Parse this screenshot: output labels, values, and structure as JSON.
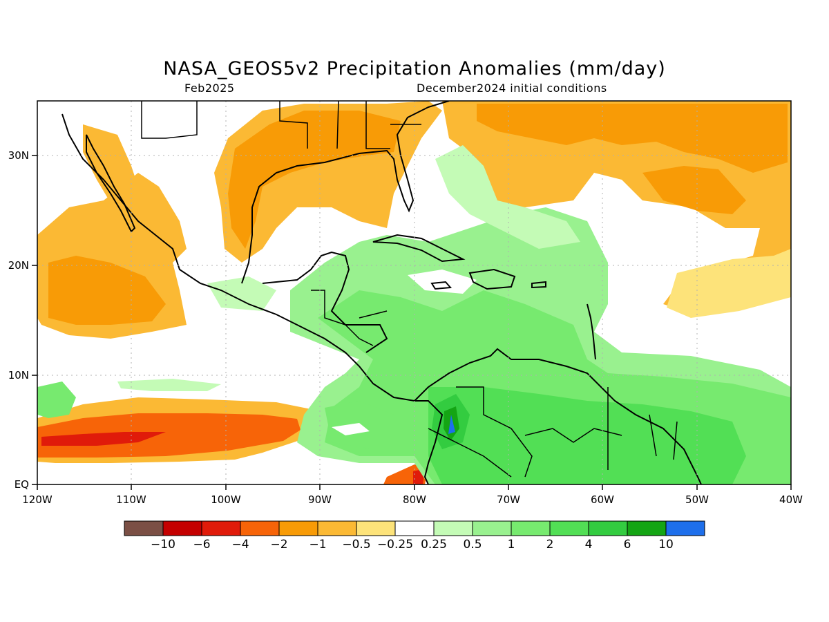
{
  "title": "NASA_GEOS5v2 Precipitation Anomalies (mm/day)",
  "subtitle_left": "Feb2025",
  "subtitle_right": "December2024 initial conditions",
  "map": {
    "region": "Central America, Caribbean and northern South America",
    "lon_range": [
      -120,
      -40
    ],
    "lat_range": [
      0,
      35
    ],
    "x_ticks": [
      "120W",
      "110W",
      "100W",
      "90W",
      "80W",
      "70W",
      "60W",
      "50W",
      "40W"
    ],
    "y_ticks": [
      "EQ",
      "10N",
      "20N",
      "30N"
    ],
    "grid": "dotted"
  },
  "colorbar": {
    "colors": [
      "#7b4f45",
      "#c40000",
      "#e01b0a",
      "#f76408",
      "#f89b06",
      "#fbb934",
      "#fde37a",
      "#ffffff",
      "#c4fbb6",
      "#99f18f",
      "#77ea6f",
      "#52df55",
      "#33cc40",
      "#14a514",
      "#1e6feb"
    ],
    "labels": [
      "-10",
      "-6",
      "-4",
      "-2",
      "-1",
      "-0.5",
      "-0.25",
      "0.25",
      "0.5",
      "1",
      "2",
      "4",
      "6",
      "10"
    ]
  }
}
